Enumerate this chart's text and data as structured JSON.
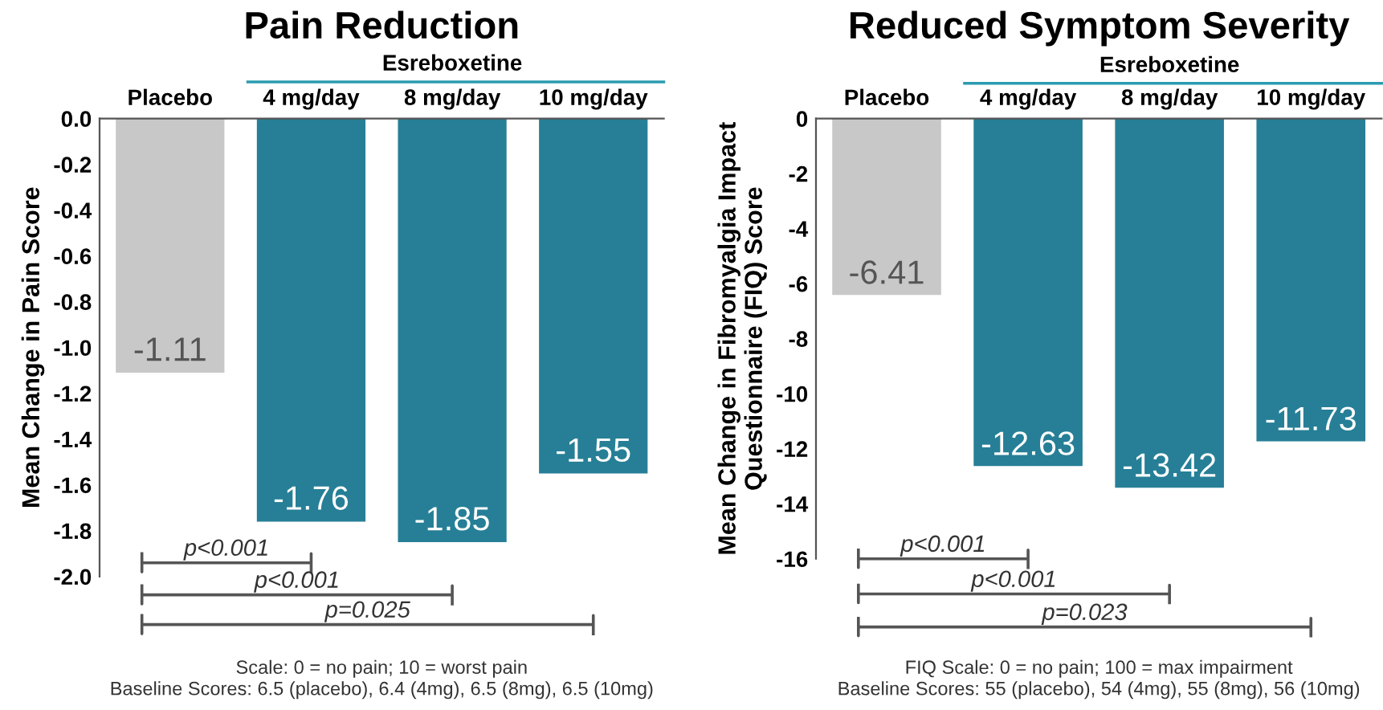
{
  "chart_data": [
    {
      "type": "bar",
      "title": "Pain Reduction",
      "ylabel": "Mean Change in Pain Score",
      "categories": [
        "Placebo",
        "4 mg/day",
        "8 mg/day",
        "10 mg/day"
      ],
      "values": [
        -1.11,
        -1.76,
        -1.85,
        -1.55
      ],
      "colors": [
        "#c8c8c8",
        "#267f96",
        "#267f96",
        "#267f96"
      ],
      "ylim": [
        -2.0,
        0
      ],
      "yticks": [
        {
          "value": 0,
          "label": "0.0"
        },
        -0.2,
        -0.4,
        -0.6,
        -0.8,
        {
          "value": -1,
          "label": "-1.0"
        },
        -1.2,
        -1.4,
        -1.6,
        -1.8,
        {
          "value": -2,
          "label": "-2.0"
        }
      ],
      "data_labels": true,
      "grid": false,
      "legend": false,
      "annotations": [
        "Esreboxetine",
        "p<0.001",
        "p<0.001",
        "p=0.025",
        "Scale: 0 = no pain; 10 = worst pain",
        "Baseline Scores: 6.5 (placebo), 6.4 (4mg), 6.5 (8mg), 6.5 (10mg)"
      ]
    },
    {
      "type": "bar",
      "title": "Reduced Symptom Severity",
      "ylabel": "Mean Change in Fibromyalgia Impact\nQuestionnaire (FIQ) Score",
      "categories": [
        "Placebo",
        "4 mg/day",
        "8 mg/day",
        "10 mg/day"
      ],
      "values": [
        -6.41,
        -12.63,
        -13.42,
        -11.73
      ],
      "colors": [
        "#c8c8c8",
        "#267f96",
        "#267f96",
        "#267f96"
      ],
      "ylim": [
        -16,
        0
      ],
      "yticks": [
        0,
        -2,
        -4,
        -6,
        -8,
        -10,
        -12,
        -14,
        -16
      ],
      "data_labels": true,
      "grid": false,
      "legend": false,
      "annotations": [
        "Esreboxetine",
        "p<0.001",
        "p<0.001",
        "p=0.023",
        "FIQ Scale: 0 = no pain; 100 = max impairment",
        "Baseline Scores: 55 (placebo), 54 (4mg), 55 (8mg), 56 (10mg)"
      ]
    }
  ]
}
